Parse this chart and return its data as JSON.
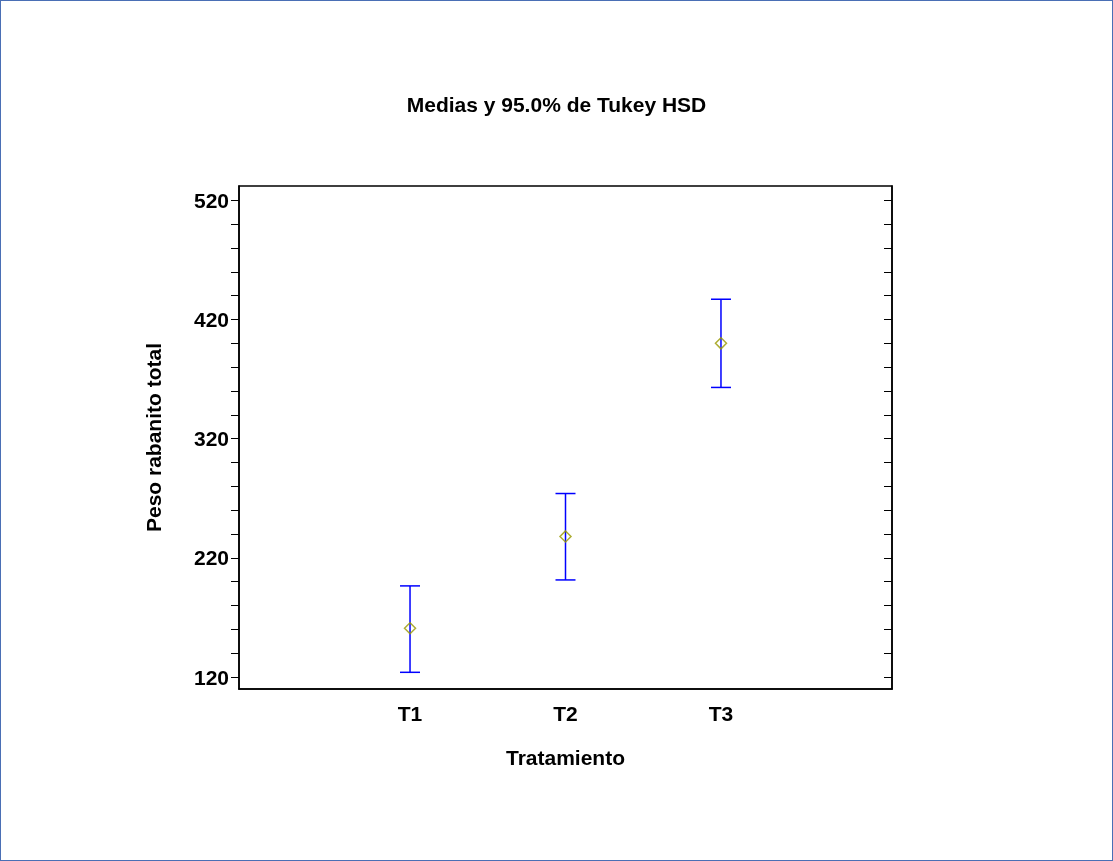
{
  "chart_data": {
    "type": "scatter",
    "title": "Medias y 95.0% de Tukey HSD",
    "xlabel": "Tratamiento",
    "ylabel": "Peso rabanito total",
    "categories": [
      "T1",
      "T2",
      "T3"
    ],
    "series": [
      {
        "color": "#999900",
        "values": [
          161,
          238,
          400
        ],
        "errors": [
          [
            124,
            196.5
          ],
          [
            201.5,
            274
          ],
          [
            363,
            437
          ]
        ]
      }
    ],
    "ylim": [
      110,
      532
    ],
    "yticks": [
      120,
      {
        "value": 140,
        "label": null
      },
      {
        "value": 160,
        "label": null
      },
      {
        "value": 180,
        "label": null
      },
      {
        "value": 200,
        "label": null
      },
      220,
      {
        "value": 240,
        "label": null
      },
      {
        "value": 260,
        "label": null
      },
      {
        "value": 280,
        "label": null
      },
      {
        "value": 300,
        "label": null
      },
      320,
      {
        "value": 340,
        "label": null
      },
      {
        "value": 360,
        "label": null
      },
      {
        "value": 380,
        "label": null
      },
      {
        "value": 400,
        "label": null
      },
      420,
      {
        "value": 440,
        "label": null
      },
      {
        "value": 460,
        "label": null
      },
      {
        "value": 480,
        "label": null
      },
      {
        "value": 500,
        "label": null
      },
      520
    ],
    "marker": "diamond",
    "grid": false
  }
}
